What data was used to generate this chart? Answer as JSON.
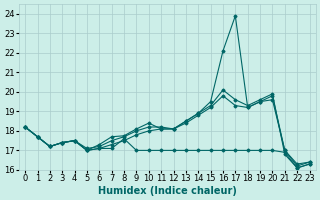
{
  "xlabel": "Humidex (Indice chaleur)",
  "ylabel": "",
  "background_color": "#cceee8",
  "grid_color": "#aacccc",
  "line_color": "#006666",
  "xlim": [
    -0.5,
    23.5
  ],
  "ylim": [
    16,
    24.5
  ],
  "yticks": [
    16,
    17,
    18,
    19,
    20,
    21,
    22,
    23,
    24
  ],
  "xticks": [
    0,
    1,
    2,
    3,
    4,
    5,
    6,
    7,
    8,
    9,
    10,
    11,
    12,
    13,
    14,
    15,
    16,
    17,
    18,
    19,
    20,
    21,
    22,
    23
  ],
  "series": [
    [
      18.2,
      17.7,
      17.2,
      17.4,
      17.5,
      17.0,
      17.1,
      17.3,
      17.5,
      17.8,
      18.0,
      18.1,
      18.1,
      18.5,
      18.9,
      19.5,
      22.1,
      23.9,
      19.2,
      19.5,
      19.6,
      17.0,
      16.3,
      16.4
    ],
    [
      18.2,
      17.7,
      17.2,
      17.4,
      17.5,
      17.1,
      17.2,
      17.5,
      17.7,
      18.0,
      18.2,
      18.2,
      18.1,
      18.4,
      18.8,
      19.2,
      19.8,
      19.3,
      19.2,
      19.5,
      19.8,
      17.0,
      16.2,
      16.4
    ],
    [
      18.2,
      17.7,
      17.2,
      17.4,
      17.5,
      17.0,
      17.3,
      17.7,
      17.75,
      18.1,
      18.4,
      18.1,
      18.1,
      18.5,
      18.9,
      19.3,
      20.1,
      19.6,
      19.3,
      19.6,
      19.9,
      16.8,
      16.1,
      16.3
    ],
    [
      18.2,
      17.7,
      17.2,
      17.4,
      17.5,
      17.0,
      17.1,
      17.1,
      17.6,
      17.0,
      17.0,
      17.0,
      17.0,
      17.0,
      17.0,
      17.0,
      17.0,
      17.0,
      17.0,
      17.0,
      17.0,
      16.9,
      16.1,
      16.3
    ]
  ]
}
